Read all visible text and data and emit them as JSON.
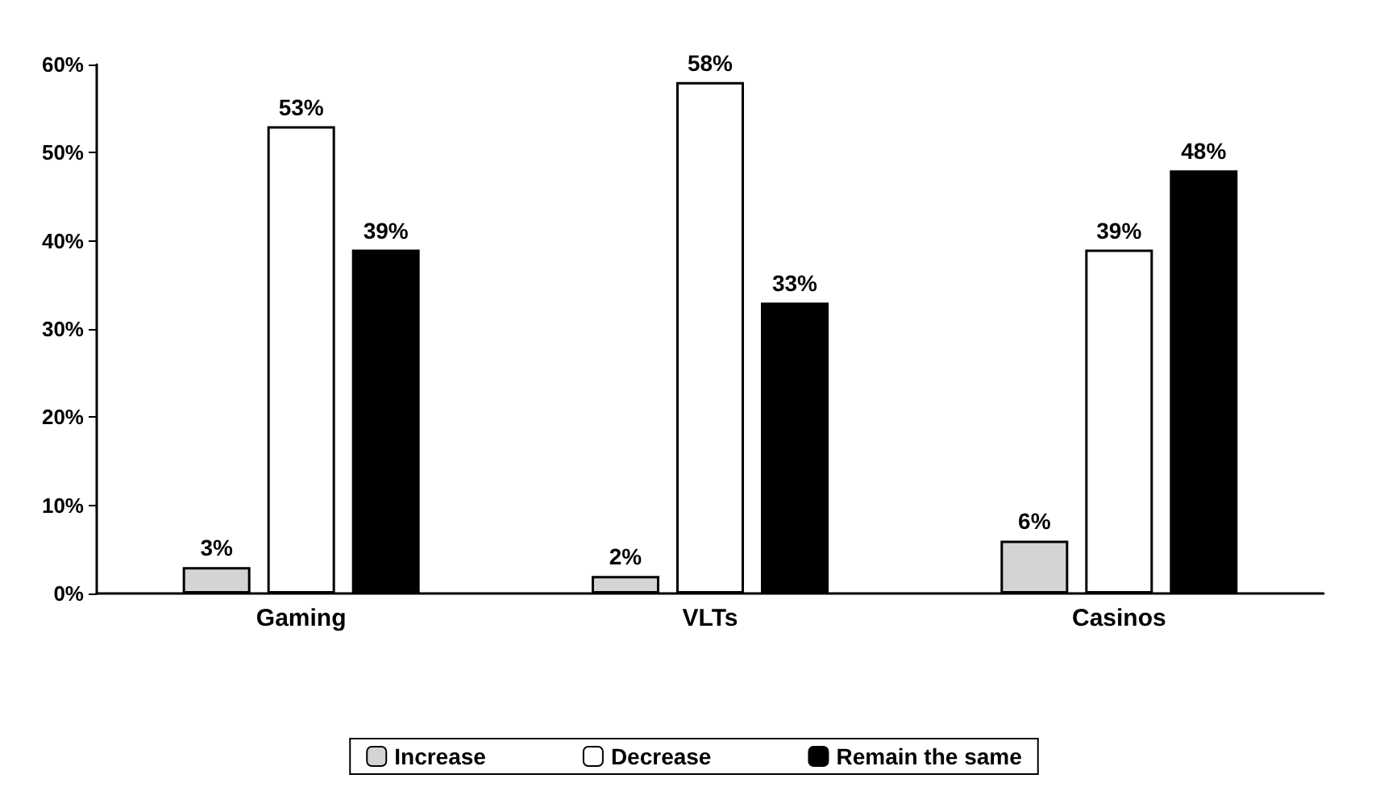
{
  "chart_data": {
    "type": "bar",
    "categories": [
      "Gaming",
      "VLTs",
      "Casinos"
    ],
    "series": [
      {
        "name": "Increase",
        "color": "#d4d4d4",
        "values": [
          3,
          2,
          6
        ],
        "value_labels": [
          "3%",
          "2%",
          "6%"
        ]
      },
      {
        "name": "Decrease",
        "color": "#ffffff",
        "values": [
          53,
          58,
          39
        ],
        "value_labels": [
          "53%",
          "58%",
          "39%"
        ]
      },
      {
        "name": "Remain the same",
        "color": "#000000",
        "values": [
          39,
          33,
          48
        ],
        "value_labels": [
          "39%",
          "33%",
          "48%"
        ]
      }
    ],
    "ylim": [
      0,
      60
    ],
    "yticks": [
      {
        "value": 0,
        "label": "0%"
      },
      {
        "value": 10,
        "label": "10%"
      },
      {
        "value": 20,
        "label": "20%"
      },
      {
        "value": 30,
        "label": "30%"
      },
      {
        "value": 40,
        "label": "40%"
      },
      {
        "value": 50,
        "label": "50%"
      },
      {
        "value": 60,
        "label": "60%"
      }
    ],
    "grid": false,
    "legend": "bottom"
  }
}
